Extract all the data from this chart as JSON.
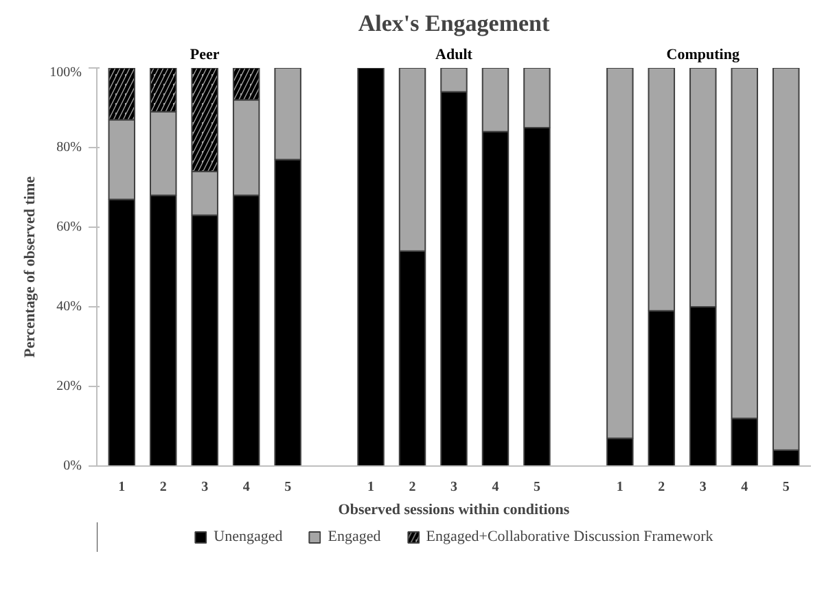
{
  "chart_data": {
    "type": "bar",
    "title": "Alex's Engagement",
    "xlabel": "Observed sessions within conditions",
    "ylabel": "Percentage of observed time",
    "annotations": [
      "Peer",
      "Adult",
      "Computing"
    ],
    "categories": [
      "1",
      "2",
      "3",
      "4",
      "5",
      null,
      "1",
      "2",
      "3",
      "4",
      "5",
      null,
      "1",
      "2",
      "3",
      "4",
      "5"
    ],
    "stacked": true,
    "ylim": [
      0,
      100
    ],
    "yticks": [
      {
        "value": 0,
        "label": "0%"
      },
      {
        "value": 20,
        "label": "20%"
      },
      {
        "value": 40,
        "label": "40%"
      },
      {
        "value": 60,
        "label": "60%"
      },
      {
        "value": 80,
        "label": "80%"
      },
      {
        "value": 100,
        "label": "100%"
      }
    ],
    "grid": false,
    "legend": "bottom",
    "series": [
      {
        "name": "Unengaged",
        "color": "#000000",
        "values": [
          67,
          68,
          63,
          68,
          77,
          null,
          100,
          54,
          94,
          84,
          85,
          null,
          7,
          39,
          40,
          12,
          4
        ]
      },
      {
        "name": "Engaged",
        "color": "#a6a6a6",
        "values": [
          20,
          21,
          11,
          24,
          23,
          null,
          0,
          46,
          6,
          16,
          15,
          null,
          93,
          61,
          60,
          88,
          96
        ]
      },
      {
        "name": "Engaged+Collaborative Discussion Framework",
        "color": "#a6a6a6",
        "values": [
          13,
          11,
          26,
          8,
          0,
          null,
          0,
          0,
          0,
          0,
          0,
          null,
          0,
          0,
          0,
          0,
          0
        ]
      }
    ]
  }
}
